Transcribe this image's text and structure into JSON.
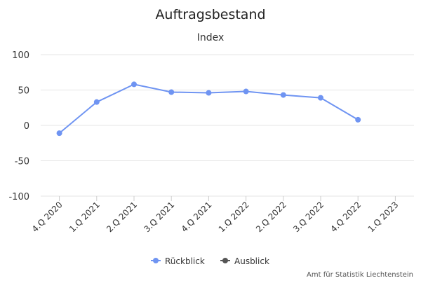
{
  "chart_data": {
    "type": "line",
    "title": "Auftragsbestand",
    "subtitle": "Index",
    "xlabel": "",
    "ylabel": "",
    "categories": [
      "4.Q 2020",
      "1.Q 2021",
      "2.Q 2021",
      "3.Q 2021",
      "4.Q 2021",
      "1.Q 2022",
      "2.Q 2022",
      "3.Q 2022",
      "4.Q 2022",
      "1.Q 2023"
    ],
    "ylim": [
      -100,
      100
    ],
    "yticks": [
      -100,
      -50,
      0,
      50,
      100
    ],
    "grid": true,
    "legend_position": "bottom",
    "series": [
      {
        "name": "Rückblick",
        "color": "#6f94f2",
        "values": [
          -11,
          33,
          58,
          47,
          46,
          48,
          43,
          39,
          8,
          null
        ]
      },
      {
        "name": "Ausblick",
        "color": "#555555",
        "values": [
          null,
          null,
          null,
          null,
          null,
          null,
          null,
          null,
          null,
          null
        ]
      }
    ],
    "credits": "Amt für Statistik Liechtenstein"
  }
}
